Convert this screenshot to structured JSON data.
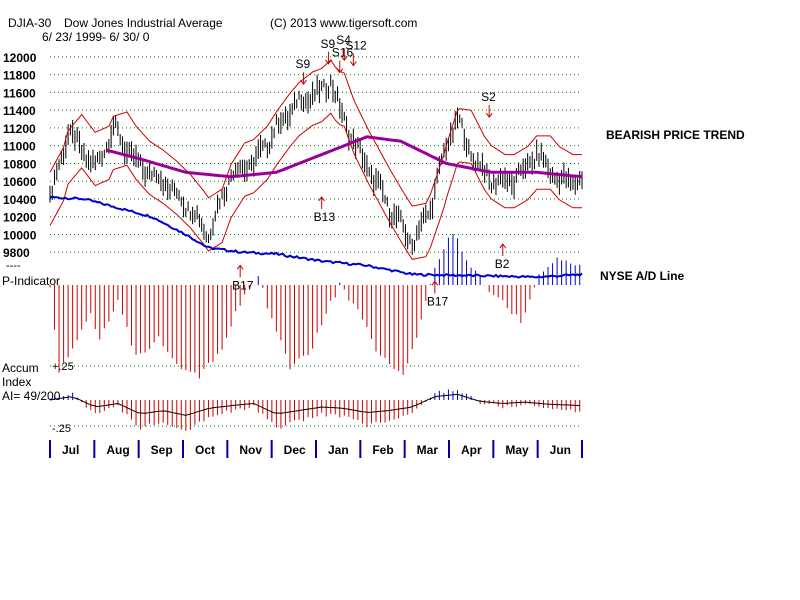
{
  "header": {
    "symbol": "DJIA-30",
    "name": "Dow Jones Industrial Average",
    "copyright": "(C) 2013 www.tigersoft.com",
    "date_range": "6/ 23/ 1999- 6/ 30/ 0"
  },
  "side_labels": {
    "trend": "BEARISH PRICE TREND",
    "ad_line": "NYSE A/D Line",
    "p_indicator": "P-Indicator",
    "accum_line1": "Accum",
    "accum_line2": "Index",
    "ai_value": "AI= 49/200",
    "plus_25": "+.25",
    "minus_25": "-.25",
    "dashes": "----"
  },
  "colors": {
    "price_bar": "#000000",
    "ma_long": "#990099",
    "band": "#cc0000",
    "ad_line": "#0000cc",
    "p_positive": "#0000cc",
    "p_negative": "#cc0000",
    "grid": "#008000",
    "signal": "#cc0000"
  },
  "chart_data": {
    "type": "bar",
    "title": "DJIA-30 Dow Jones Industrial Average",
    "ylim": [
      9600,
      12100
    ],
    "y_ticks": [
      9800,
      10000,
      10200,
      10400,
      10600,
      10800,
      11000,
      11200,
      11400,
      11600,
      11800,
      12000
    ],
    "categories": [
      "Jul",
      "Aug",
      "Sep",
      "Oct",
      "Nov",
      "Dec",
      "Jan",
      "Feb",
      "Mar",
      "Apr",
      "May",
      "Jun"
    ],
    "price_series": {
      "name": "DJIA",
      "keypoints": [
        [
          0,
          10400
        ],
        [
          8,
          11150
        ],
        [
          20,
          10750
        ],
        [
          28,
          11200
        ],
        [
          38,
          10800
        ],
        [
          50,
          10600
        ],
        [
          62,
          10300
        ],
        [
          70,
          10000
        ],
        [
          80,
          10700
        ],
        [
          90,
          10800
        ],
        [
          100,
          11200
        ],
        [
          110,
          11500
        ],
        [
          120,
          11600
        ],
        [
          124,
          11750
        ],
        [
          128,
          11400
        ],
        [
          135,
          11000
        ],
        [
          150,
          10300
        ],
        [
          160,
          9900
        ],
        [
          168,
          10300
        ],
        [
          175,
          11000
        ],
        [
          180,
          11300
        ],
        [
          186,
          10900
        ],
        [
          195,
          10600
        ],
        [
          205,
          10600
        ],
        [
          215,
          10900
        ],
        [
          225,
          10600
        ],
        [
          235,
          10600
        ]
      ]
    },
    "ma_long": {
      "name": "Long moving average",
      "keypoints": [
        [
          25,
          10950
        ],
        [
          40,
          10850
        ],
        [
          60,
          10700
        ],
        [
          80,
          10650
        ],
        [
          100,
          10700
        ],
        [
          120,
          10900
        ],
        [
          140,
          11100
        ],
        [
          155,
          11050
        ],
        [
          175,
          10800
        ],
        [
          195,
          10700
        ],
        [
          215,
          10700
        ],
        [
          235,
          10650
        ]
      ]
    },
    "ad_line": {
      "name": "NYSE A/D Line",
      "keypoints": [
        [
          0,
          10420
        ],
        [
          15,
          10400
        ],
        [
          30,
          10300
        ],
        [
          45,
          10200
        ],
        [
          60,
          10000
        ],
        [
          70,
          9850
        ],
        [
          85,
          9800
        ],
        [
          100,
          9780
        ],
        [
          120,
          9700
        ],
        [
          140,
          9650
        ],
        [
          160,
          9550
        ],
        [
          180,
          9540
        ],
        [
          200,
          9530
        ],
        [
          215,
          9520
        ],
        [
          235,
          9550
        ]
      ]
    },
    "p_indicator": {
      "name": "P-Indicator",
      "keypoints": [
        [
          0,
          0
        ],
        [
          4,
          -1
        ],
        [
          10,
          -0.7
        ],
        [
          18,
          -0.3
        ],
        [
          22,
          -0.6
        ],
        [
          30,
          -0.2
        ],
        [
          38,
          -0.8
        ],
        [
          48,
          -0.6
        ],
        [
          58,
          -0.9
        ],
        [
          66,
          -1
        ],
        [
          76,
          -0.7
        ],
        [
          84,
          -0.2
        ],
        [
          92,
          0.1
        ],
        [
          98,
          -0.4
        ],
        [
          106,
          -0.9
        ],
        [
          114,
          -0.8
        ],
        [
          122,
          -0.3
        ],
        [
          128,
          0
        ],
        [
          136,
          -0.3
        ],
        [
          146,
          -0.8
        ],
        [
          156,
          -1
        ],
        [
          162,
          -0.6
        ],
        [
          170,
          0.2
        ],
        [
          178,
          0.6
        ],
        [
          184,
          0.3
        ],
        [
          192,
          0
        ],
        [
          200,
          -0.2
        ],
        [
          208,
          -0.4
        ],
        [
          216,
          0.1
        ],
        [
          224,
          0.3
        ],
        [
          235,
          0.2
        ]
      ]
    },
    "accum_index": {
      "name": "Accum Index",
      "ylim": [
        -0.25,
        0.25
      ],
      "keypoints": [
        [
          0,
          0
        ],
        [
          10,
          0.05
        ],
        [
          20,
          -0.1
        ],
        [
          30,
          -0.05
        ],
        [
          40,
          -0.2
        ],
        [
          50,
          -0.15
        ],
        [
          60,
          -0.22
        ],
        [
          70,
          -0.12
        ],
        [
          80,
          -0.08
        ],
        [
          90,
          -0.05
        ],
        [
          100,
          -0.2
        ],
        [
          110,
          -0.15
        ],
        [
          120,
          -0.1
        ],
        [
          130,
          -0.12
        ],
        [
          140,
          -0.18
        ],
        [
          150,
          -0.15
        ],
        [
          160,
          -0.1
        ],
        [
          170,
          0.05
        ],
        [
          180,
          0.08
        ],
        [
          190,
          -0.02
        ],
        [
          200,
          -0.05
        ],
        [
          210,
          -0.03
        ],
        [
          220,
          -0.06
        ],
        [
          235,
          -0.08
        ]
      ]
    },
    "signals": [
      {
        "label": "S9",
        "idx": 112,
        "price": 11850,
        "type": "sell"
      },
      {
        "label": "S9",
        "idx": 123,
        "price": 12080,
        "type": "sell"
      },
      {
        "label": "S16",
        "idx": 128,
        "price": 11980,
        "type": "sell"
      },
      {
        "label": "S4",
        "idx": 130,
        "price": 12120,
        "type": "sell"
      },
      {
        "label": "S12",
        "idx": 134,
        "price": 12060,
        "type": "sell"
      },
      {
        "label": "S2",
        "idx": 194,
        "price": 11480,
        "type": "sell"
      },
      {
        "label": "B13",
        "idx": 120,
        "price": 10400,
        "type": "buy"
      },
      {
        "label": "B2",
        "idx": 200,
        "price": 9870,
        "type": "buy"
      },
      {
        "label": "B17",
        "idx": 84,
        "price": 9630,
        "type": "buy"
      },
      {
        "label": "B17",
        "idx": 170,
        "price": 9450,
        "type": "buy"
      }
    ]
  }
}
